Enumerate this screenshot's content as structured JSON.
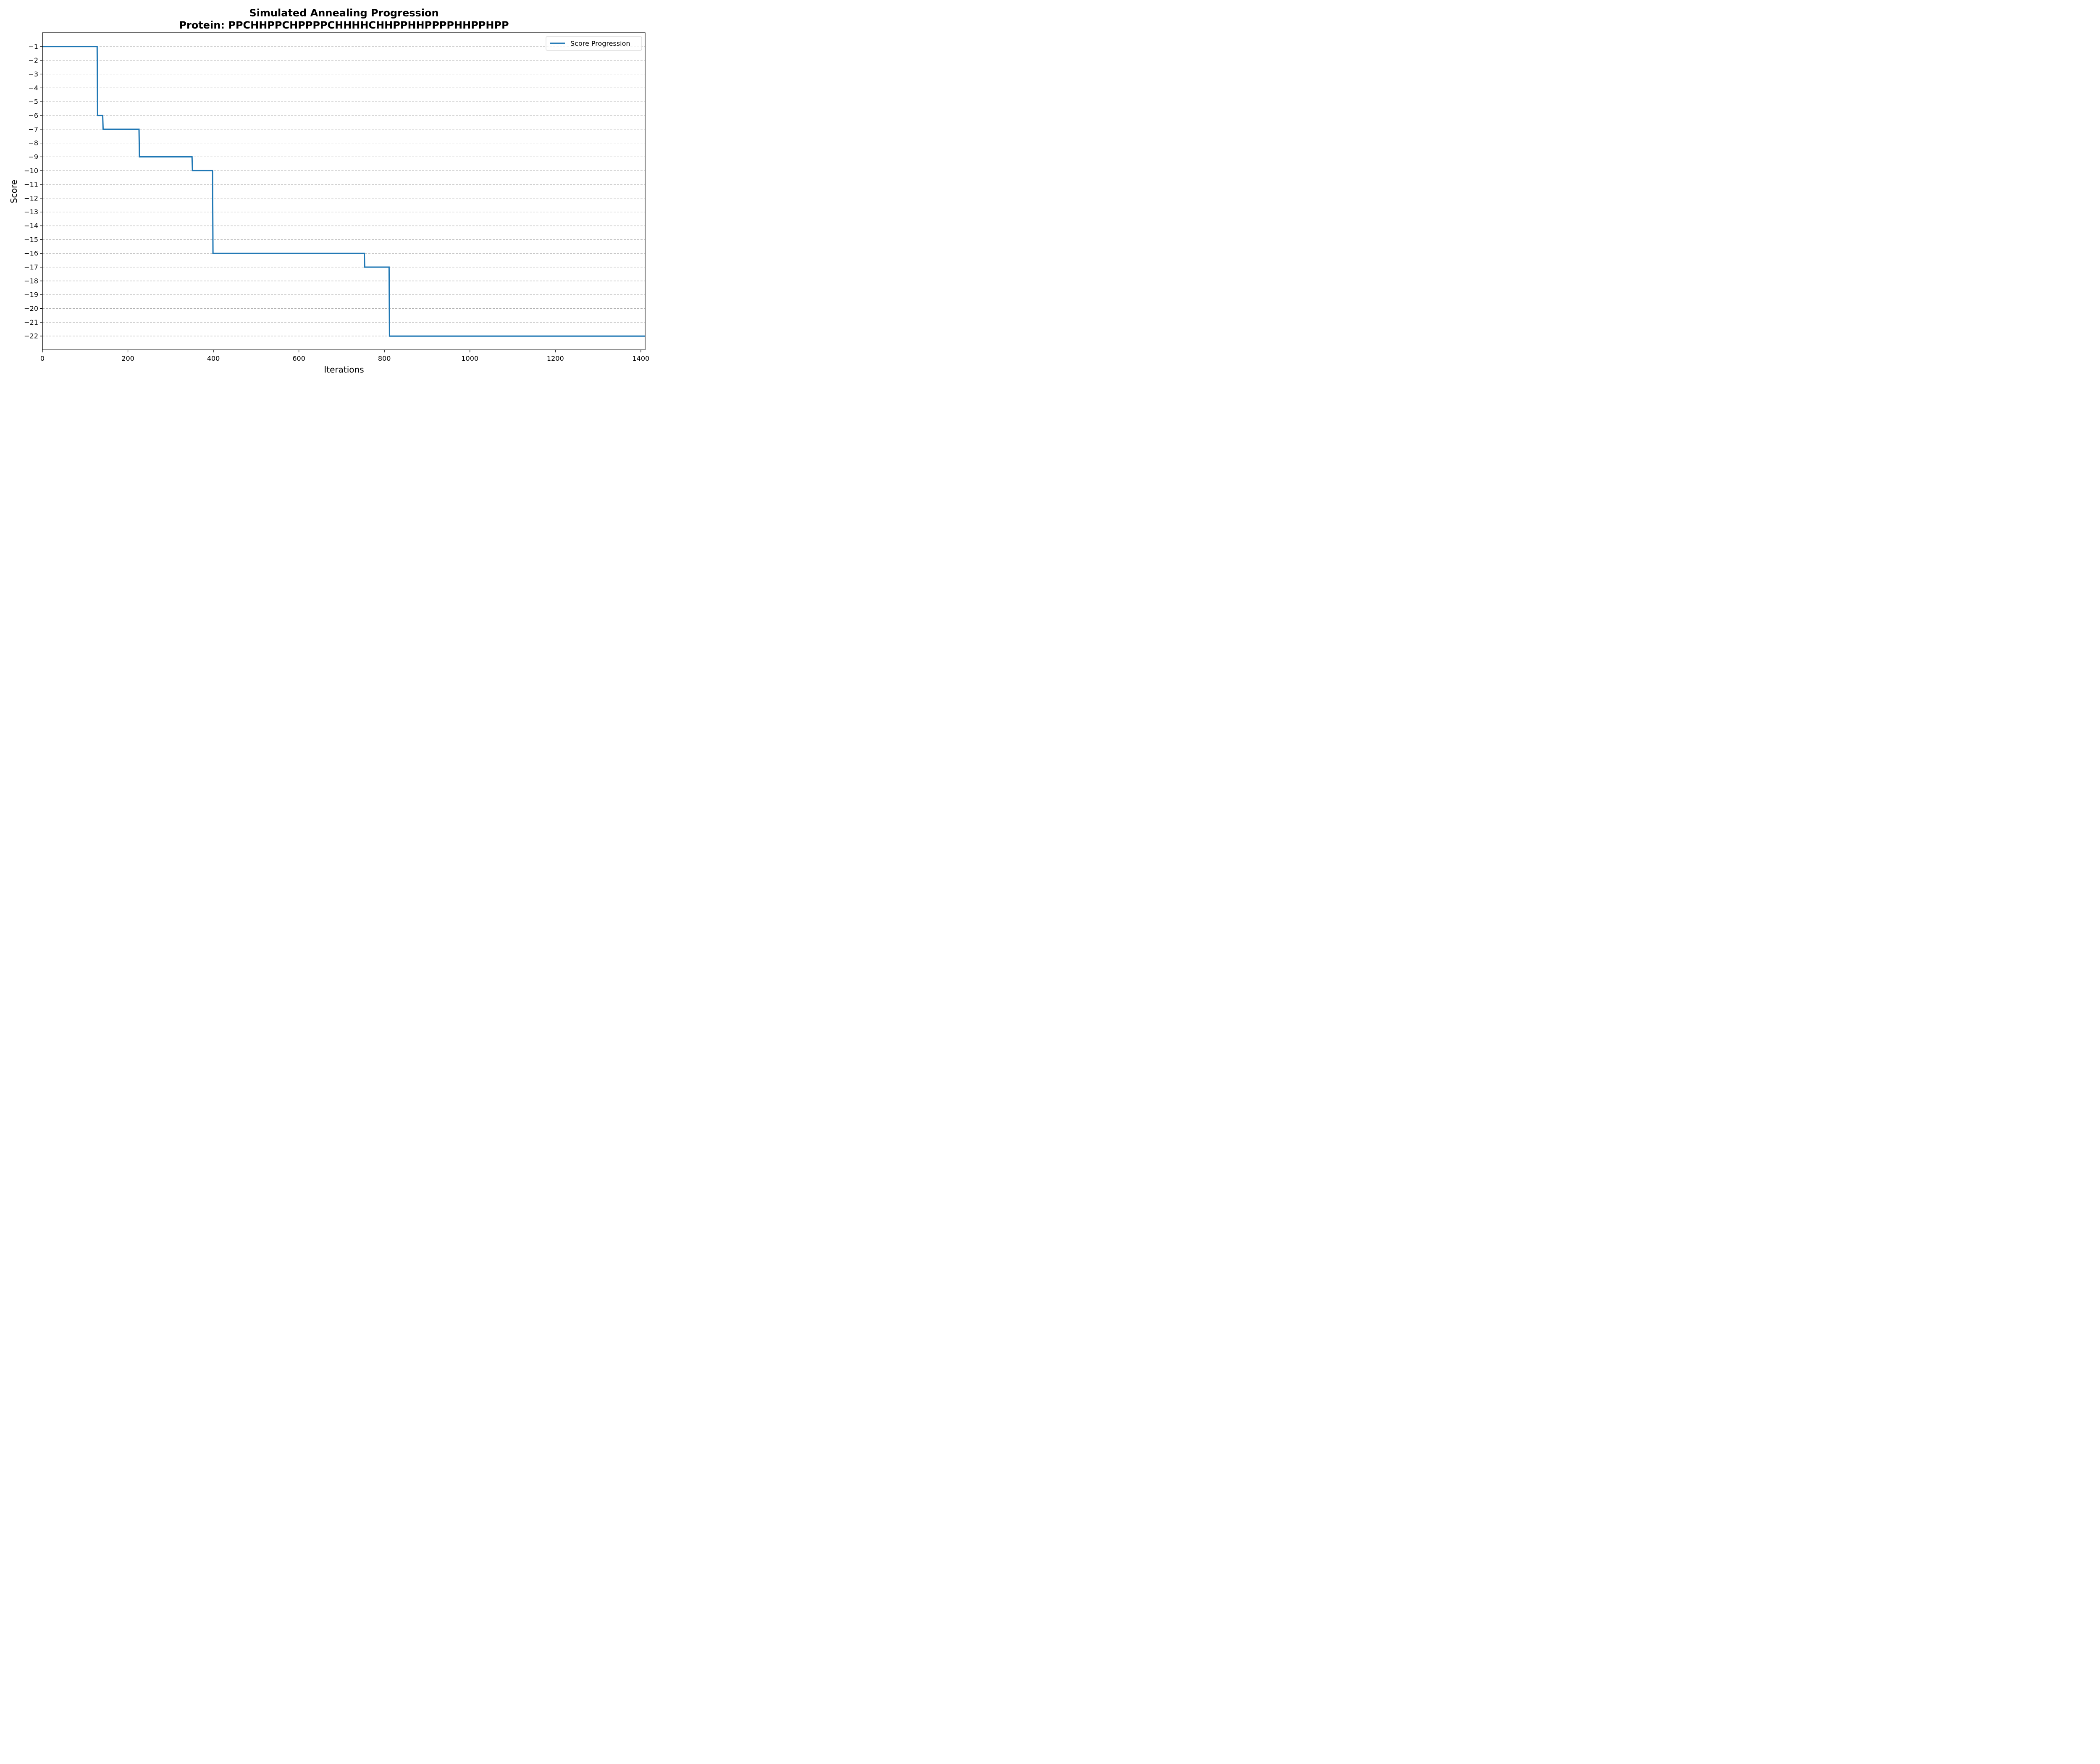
{
  "chart_data": {
    "type": "line",
    "title": "Simulated Annealing Progression",
    "subtitle": "Protein: PPCHHPPCHPPPPCHHHHCHHPPHHPPPPHHPPHPP",
    "xlabel": "Iterations",
    "ylabel": "Score",
    "xlim": [
      0,
      1410
    ],
    "ylim": [
      -23,
      0
    ],
    "xticks": [
      0,
      200,
      400,
      600,
      800,
      1000,
      1200,
      1400
    ],
    "xtick_labels": [
      "0",
      "200",
      "400",
      "600",
      "800",
      "1000",
      "1200",
      "1400"
    ],
    "yticks": [
      -1,
      -2,
      -3,
      -4,
      -5,
      -6,
      -7,
      -8,
      -9,
      -10,
      -11,
      -12,
      -13,
      -14,
      -15,
      -16,
      -17,
      -18,
      -19,
      -20,
      -21,
      -22
    ],
    "ytick_labels": [
      "−1",
      "−2",
      "−3",
      "−4",
      "−5",
      "−6",
      "−7",
      "−8",
      "−9",
      "−10",
      "−11",
      "−12",
      "−13",
      "−14",
      "−15",
      "−16",
      "−17",
      "−18",
      "−19",
      "−20",
      "−21",
      "−22"
    ],
    "grid": "horizontal-dashed",
    "legend_position": "top-right",
    "series": [
      {
        "name": "Score Progression",
        "color": "#1f77b4",
        "x": [
          0,
          128,
          129,
          141,
          142,
          226,
          227,
          350,
          351,
          398,
          399,
          753,
          754,
          811,
          812,
          1410
        ],
        "y": [
          -1,
          -1,
          -6,
          -6,
          -7,
          -7,
          -9,
          -9,
          -10,
          -10,
          -16,
          -16,
          -17,
          -17,
          -22,
          -22
        ]
      }
    ]
  }
}
